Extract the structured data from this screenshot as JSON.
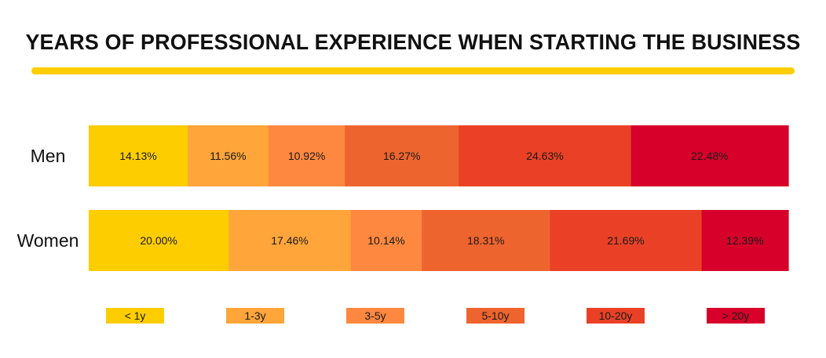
{
  "title": "YEARS OF PROFESSIONAL EXPERIENCE WHEN STARTING THE BUSINESS",
  "colors": {
    "underline": "#FDCD00",
    "segments": [
      "#FDCD00",
      "#FFA53A",
      "#FF8840",
      "#EE642E",
      "#EA4126",
      "#D7002A"
    ]
  },
  "chart_data": {
    "type": "bar",
    "orientation": "horizontal",
    "stacked": true,
    "categories": [
      "Men",
      "Women"
    ],
    "series": [
      {
        "name": "< 1y",
        "values": [
          14.13,
          20.0
        ],
        "labels": [
          "14.13%",
          "20.00%"
        ]
      },
      {
        "name": "1-3y",
        "values": [
          11.56,
          17.46
        ],
        "labels": [
          "11.56%",
          "17.46%"
        ]
      },
      {
        "name": "3-5y",
        "values": [
          10.92,
          10.14
        ],
        "labels": [
          "10.92%",
          "10.14%"
        ]
      },
      {
        "name": "5-10y",
        "values": [
          16.27,
          18.31
        ],
        "labels": [
          "16.27%",
          "18.31%"
        ]
      },
      {
        "name": "10-20y",
        "values": [
          24.63,
          21.69
        ],
        "labels": [
          "24.63%",
          "21.69%"
        ]
      },
      {
        "name": "> 20y",
        "values": [
          22.48,
          12.39
        ],
        "labels": [
          "22.48%",
          "12.39%"
        ]
      }
    ],
    "xlim": [
      0,
      100
    ],
    "grid": false,
    "legend": "bottom"
  }
}
